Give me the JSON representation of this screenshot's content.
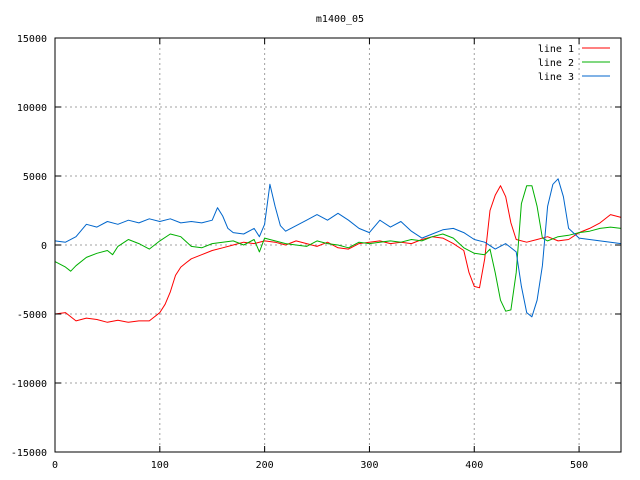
{
  "chart_data": {
    "type": "line",
    "title": "m1400_05",
    "xlabel": "",
    "ylabel": "",
    "xlim": [
      0,
      540
    ],
    "ylim": [
      -15000,
      15000
    ],
    "x_ticks": [
      0,
      100,
      200,
      300,
      400,
      500
    ],
    "y_ticks": [
      -15000,
      -10000,
      -5000,
      0,
      5000,
      10000,
      15000
    ],
    "grid": true,
    "legend_position": "top-right",
    "series": [
      {
        "name": "line 1",
        "color": "#ff0000",
        "points": [
          [
            0,
            -5000
          ],
          [
            10,
            -4900
          ],
          [
            20,
            -5500
          ],
          [
            30,
            -5300
          ],
          [
            40,
            -5400
          ],
          [
            50,
            -5600
          ],
          [
            60,
            -5450
          ],
          [
            70,
            -5600
          ],
          [
            80,
            -5500
          ],
          [
            90,
            -5500
          ],
          [
            100,
            -4900
          ],
          [
            105,
            -4300
          ],
          [
            110,
            -3400
          ],
          [
            115,
            -2200
          ],
          [
            120,
            -1600
          ],
          [
            125,
            -1300
          ],
          [
            130,
            -1000
          ],
          [
            140,
            -700
          ],
          [
            150,
            -400
          ],
          [
            160,
            -200
          ],
          [
            170,
            0
          ],
          [
            180,
            200
          ],
          [
            190,
            100
          ],
          [
            200,
            300
          ],
          [
            210,
            200
          ],
          [
            220,
            0
          ],
          [
            230,
            300
          ],
          [
            240,
            100
          ],
          [
            250,
            -100
          ],
          [
            260,
            200
          ],
          [
            270,
            -200
          ],
          [
            280,
            -300
          ],
          [
            290,
            100
          ],
          [
            300,
            200
          ],
          [
            310,
            300
          ],
          [
            320,
            100
          ],
          [
            330,
            200
          ],
          [
            340,
            100
          ],
          [
            350,
            400
          ],
          [
            360,
            600
          ],
          [
            370,
            500
          ],
          [
            380,
            100
          ],
          [
            390,
            -400
          ],
          [
            395,
            -2000
          ],
          [
            400,
            -3000
          ],
          [
            405,
            -3100
          ],
          [
            410,
            -1000
          ],
          [
            415,
            2500
          ],
          [
            420,
            3600
          ],
          [
            425,
            4300
          ],
          [
            430,
            3500
          ],
          [
            435,
            1600
          ],
          [
            440,
            400
          ],
          [
            450,
            200
          ],
          [
            460,
            400
          ],
          [
            470,
            600
          ],
          [
            480,
            300
          ],
          [
            490,
            400
          ],
          [
            500,
            900
          ],
          [
            510,
            1200
          ],
          [
            520,
            1600
          ],
          [
            530,
            2200
          ],
          [
            540,
            2000
          ]
        ]
      },
      {
        "name": "line 2",
        "color": "#00b000",
        "points": [
          [
            0,
            -1200
          ],
          [
            10,
            -1600
          ],
          [
            15,
            -1900
          ],
          [
            20,
            -1500
          ],
          [
            30,
            -900
          ],
          [
            40,
            -600
          ],
          [
            50,
            -400
          ],
          [
            55,
            -700
          ],
          [
            60,
            -100
          ],
          [
            70,
            400
          ],
          [
            80,
            100
          ],
          [
            90,
            -300
          ],
          [
            100,
            300
          ],
          [
            110,
            800
          ],
          [
            120,
            600
          ],
          [
            130,
            -100
          ],
          [
            140,
            -200
          ],
          [
            150,
            100
          ],
          [
            160,
            200
          ],
          [
            170,
            300
          ],
          [
            180,
            0
          ],
          [
            190,
            400
          ],
          [
            195,
            -500
          ],
          [
            200,
            500
          ],
          [
            210,
            300
          ],
          [
            220,
            100
          ],
          [
            230,
            0
          ],
          [
            240,
            -100
          ],
          [
            250,
            300
          ],
          [
            260,
            100
          ],
          [
            270,
            0
          ],
          [
            280,
            -200
          ],
          [
            290,
            200
          ],
          [
            300,
            100
          ],
          [
            310,
            200
          ],
          [
            320,
            300
          ],
          [
            330,
            200
          ],
          [
            340,
            400
          ],
          [
            350,
            300
          ],
          [
            360,
            600
          ],
          [
            370,
            800
          ],
          [
            380,
            500
          ],
          [
            390,
            -200
          ],
          [
            400,
            -600
          ],
          [
            410,
            -700
          ],
          [
            415,
            -300
          ],
          [
            420,
            -2000
          ],
          [
            425,
            -4000
          ],
          [
            430,
            -4800
          ],
          [
            435,
            -4700
          ],
          [
            440,
            -2000
          ],
          [
            445,
            3000
          ],
          [
            450,
            4300
          ],
          [
            455,
            4300
          ],
          [
            460,
            2800
          ],
          [
            465,
            500
          ],
          [
            470,
            300
          ],
          [
            480,
            600
          ],
          [
            490,
            700
          ],
          [
            500,
            900
          ],
          [
            510,
            1000
          ],
          [
            520,
            1200
          ],
          [
            530,
            1300
          ],
          [
            540,
            1200
          ]
        ]
      },
      {
        "name": "line 3",
        "color": "#0066cc",
        "points": [
          [
            0,
            300
          ],
          [
            10,
            200
          ],
          [
            20,
            600
          ],
          [
            30,
            1500
          ],
          [
            40,
            1300
          ],
          [
            50,
            1700
          ],
          [
            60,
            1500
          ],
          [
            70,
            1800
          ],
          [
            80,
            1600
          ],
          [
            90,
            1900
          ],
          [
            100,
            1700
          ],
          [
            110,
            1900
          ],
          [
            120,
            1600
          ],
          [
            130,
            1700
          ],
          [
            140,
            1600
          ],
          [
            150,
            1800
          ],
          [
            155,
            2700
          ],
          [
            160,
            2100
          ],
          [
            165,
            1200
          ],
          [
            170,
            900
          ],
          [
            180,
            800
          ],
          [
            190,
            1200
          ],
          [
            195,
            600
          ],
          [
            200,
            1500
          ],
          [
            205,
            4400
          ],
          [
            210,
            2800
          ],
          [
            215,
            1400
          ],
          [
            220,
            1000
          ],
          [
            230,
            1400
          ],
          [
            240,
            1800
          ],
          [
            250,
            2200
          ],
          [
            260,
            1800
          ],
          [
            270,
            2300
          ],
          [
            280,
            1800
          ],
          [
            290,
            1200
          ],
          [
            300,
            900
          ],
          [
            310,
            1800
          ],
          [
            320,
            1300
          ],
          [
            330,
            1700
          ],
          [
            340,
            1000
          ],
          [
            350,
            500
          ],
          [
            360,
            800
          ],
          [
            370,
            1100
          ],
          [
            380,
            1200
          ],
          [
            390,
            900
          ],
          [
            400,
            400
          ],
          [
            410,
            200
          ],
          [
            420,
            -300
          ],
          [
            430,
            100
          ],
          [
            440,
            -500
          ],
          [
            445,
            -3000
          ],
          [
            450,
            -4900
          ],
          [
            455,
            -5200
          ],
          [
            460,
            -4000
          ],
          [
            465,
            -1500
          ],
          [
            470,
            2800
          ],
          [
            475,
            4400
          ],
          [
            480,
            4800
          ],
          [
            485,
            3500
          ],
          [
            490,
            1200
          ],
          [
            500,
            500
          ],
          [
            510,
            400
          ],
          [
            520,
            300
          ],
          [
            530,
            200
          ],
          [
            540,
            100
          ]
        ]
      }
    ]
  }
}
